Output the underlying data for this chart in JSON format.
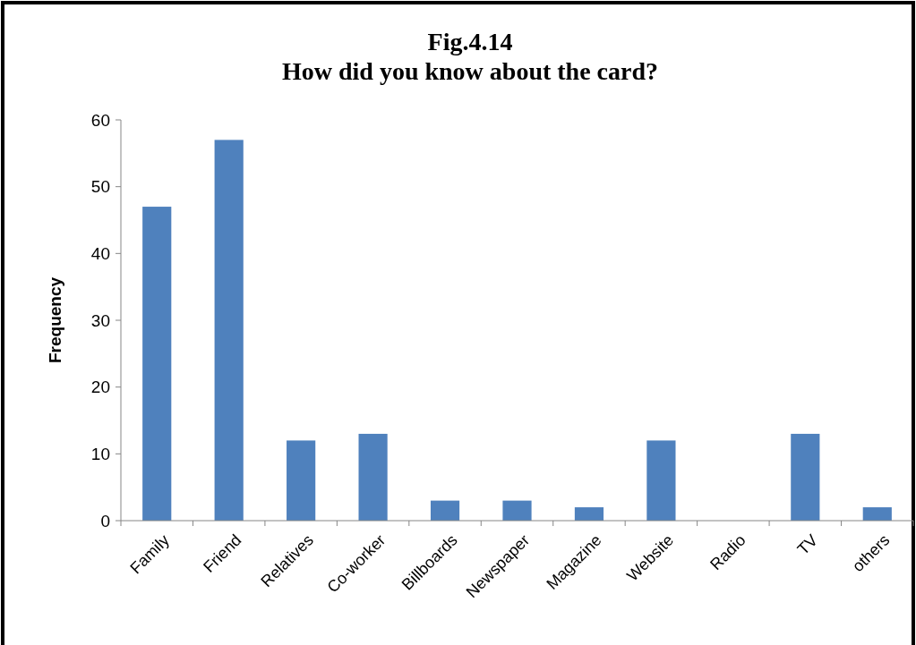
{
  "chart_data": {
    "type": "bar",
    "title": "Fig.4.14\nHow did you know about the card?",
    "ylabel": "Frequency",
    "categories": [
      "Family",
      "Friend",
      "Relatives",
      "Co-worker",
      "Billboards",
      "Newspaper",
      "Magazine",
      "Website",
      "Radio",
      "TV",
      "others"
    ],
    "values": [
      47,
      57,
      12,
      13,
      3,
      3,
      2,
      12,
      0,
      13,
      2
    ],
    "color": "#4f81bd",
    "ylim": [
      0,
      60
    ],
    "yticks": [
      0,
      10,
      20,
      30,
      40,
      50,
      60
    ],
    "grid": false
  }
}
